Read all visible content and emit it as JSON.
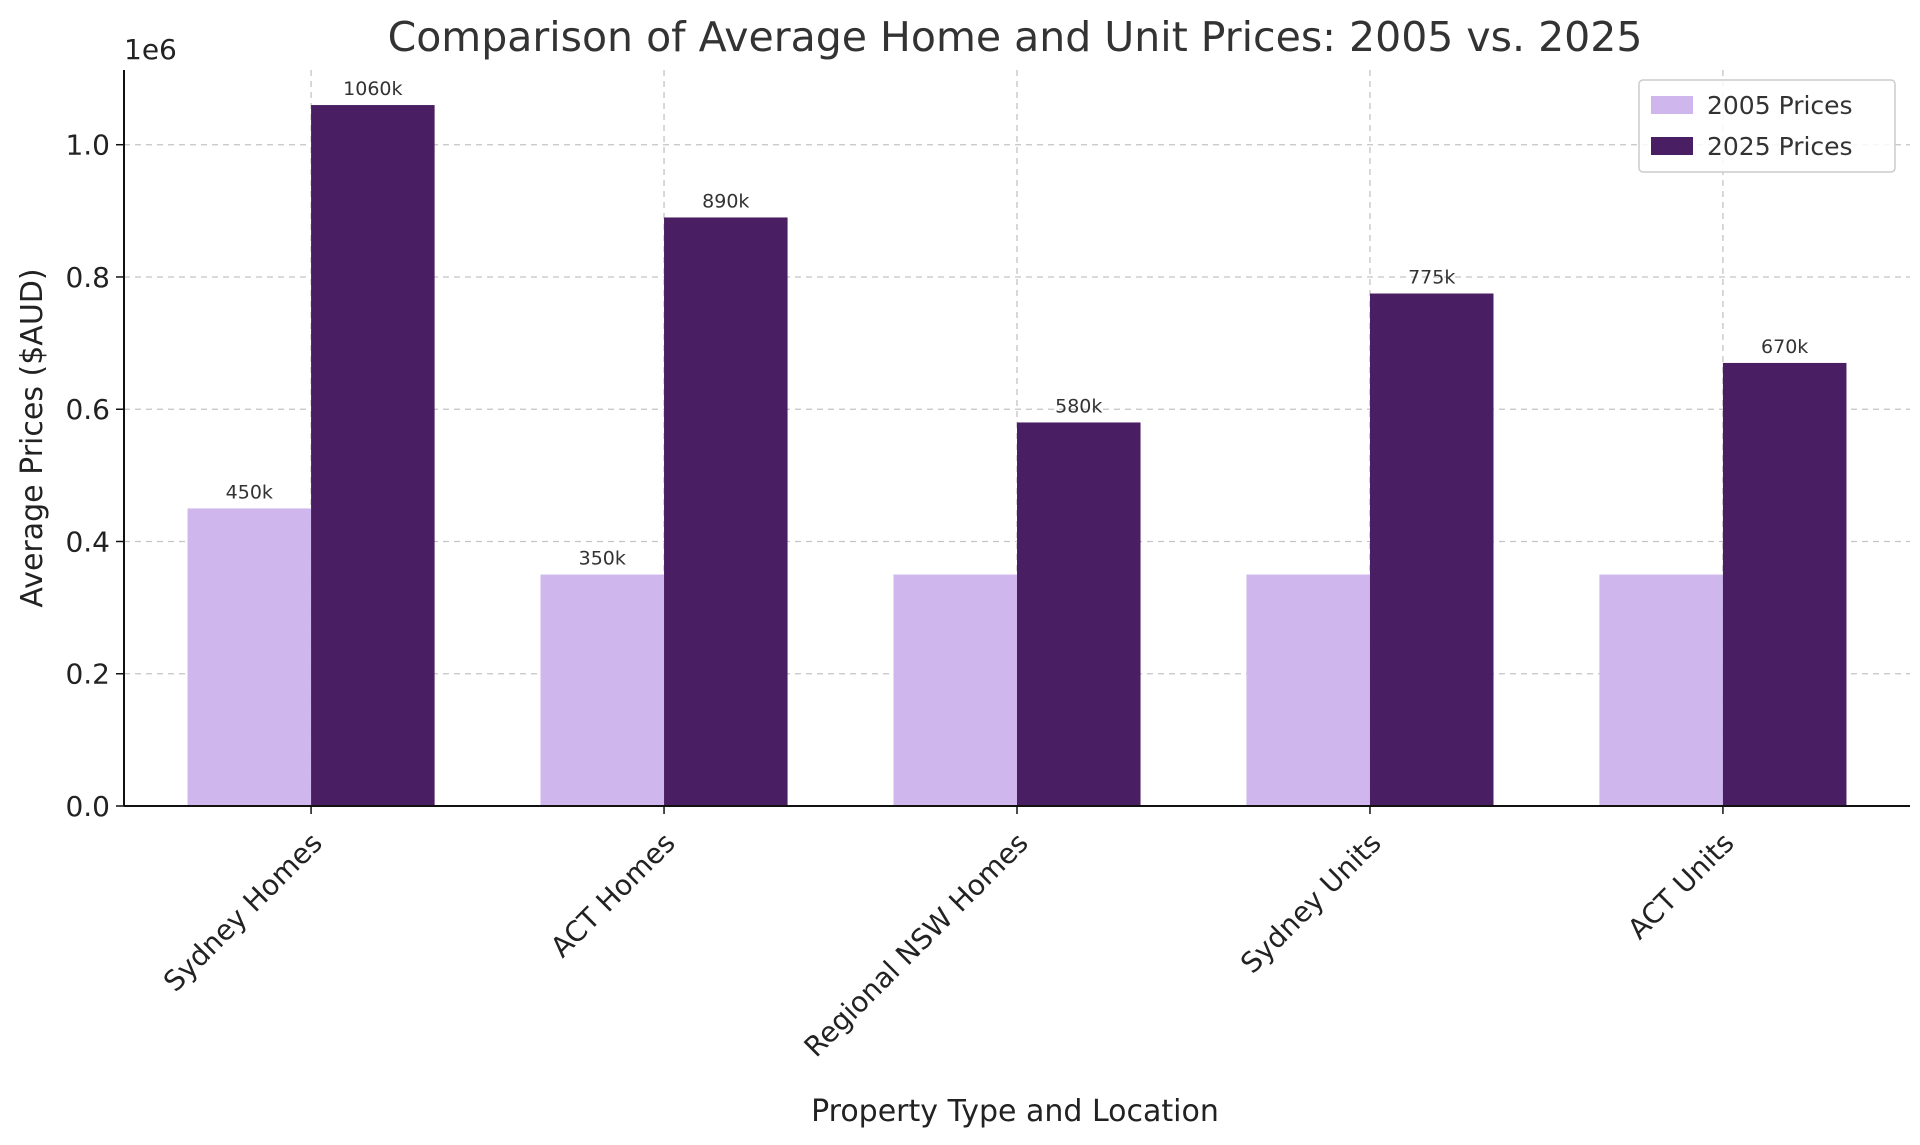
{
  "chart_data": {
    "type": "bar",
    "title": "Comparison of Average Home and Unit Prices: 2005 vs. 2025",
    "xlabel": "Property Type and Location",
    "ylabel": "Average Prices ($AUD)",
    "y_exponent_label": "1e6",
    "ylim": [
      0,
      1113000
    ],
    "y_ticks": [
      0,
      200000,
      400000,
      600000,
      800000,
      1000000
    ],
    "y_tick_labels": [
      "0.0",
      "0.2",
      "0.4",
      "0.6",
      "0.8",
      "1.0"
    ],
    "categories": [
      "Sydney Homes",
      "ACT Homes",
      "Regional NSW Homes",
      "Sydney Units",
      "ACT Units"
    ],
    "series": [
      {
        "name": "2005 Prices",
        "color": "#cfb7ee",
        "values": [
          450000,
          350000,
          350000,
          350000,
          350000
        ],
        "data_labels": [
          "450k",
          "350k",
          "",
          "",
          ""
        ]
      },
      {
        "name": "2025 Prices",
        "color": "#4a1e62",
        "values": [
          1060000,
          890000,
          580000,
          775000,
          670000
        ],
        "data_labels": [
          "1060k",
          "890k",
          "580k",
          "775k",
          "670k"
        ]
      }
    ],
    "grid": true,
    "legend_position": "top-right"
  }
}
